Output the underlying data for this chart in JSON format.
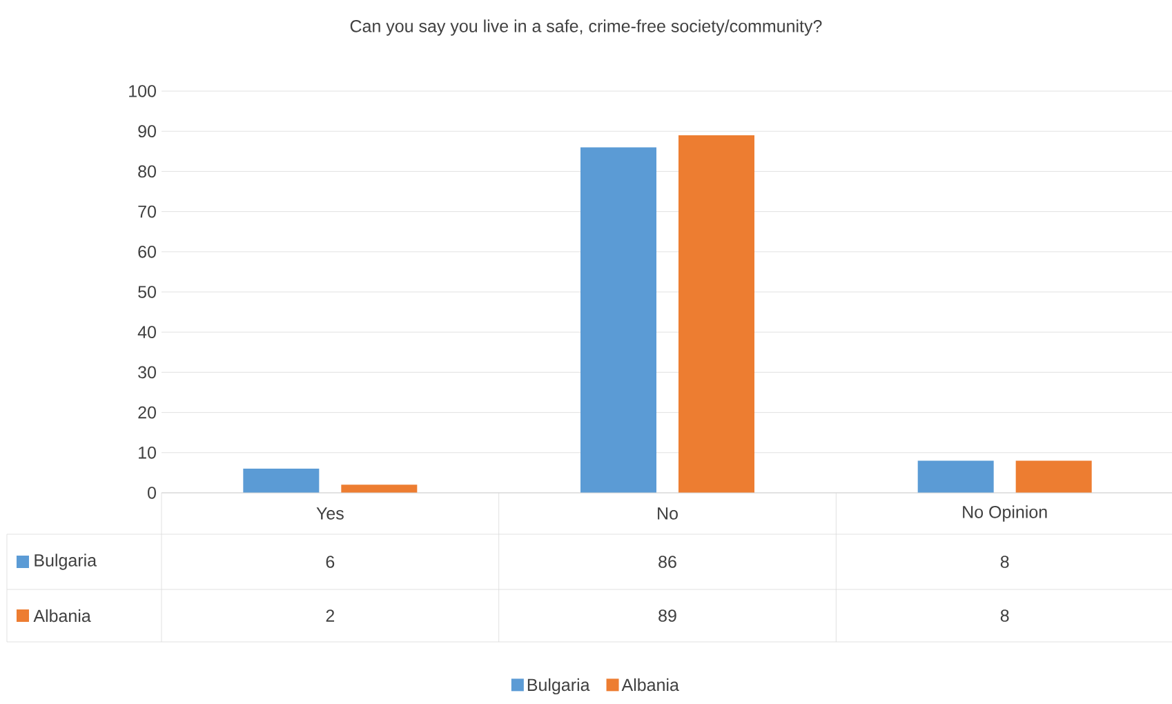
{
  "chart_data": {
    "type": "bar",
    "title": "Can you say you live in a safe, crime-free society/community?",
    "categories": [
      "Yes",
      "No",
      "No Opinion"
    ],
    "series": [
      {
        "name": "Bulgaria",
        "color": "#5b9bd5",
        "values": [
          6,
          86,
          8
        ]
      },
      {
        "name": "Albania",
        "color": "#ed7d31",
        "values": [
          2,
          89,
          8
        ]
      }
    ],
    "ylim": [
      0,
      100
    ],
    "yticks": [
      0,
      10,
      20,
      30,
      40,
      50,
      60,
      70,
      80,
      90,
      100
    ],
    "grid": "y",
    "legend": "bottom",
    "data_labels": true
  }
}
